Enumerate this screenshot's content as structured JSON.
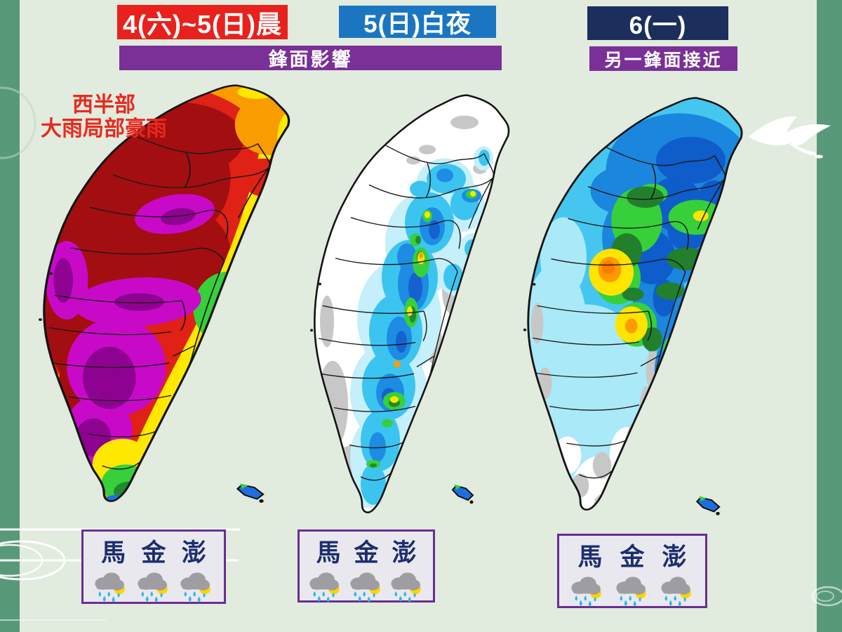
{
  "headers": [
    {
      "label": "4(六)~5(日)晨",
      "bg": "#e9211c",
      "text_color": "#ffffff"
    },
    {
      "label": "5(日)白夜",
      "bg": "#1a76c1",
      "text_color": "#ffffff"
    },
    {
      "label": "6(一)",
      "bg": "#1c2e5c",
      "text_color": "#ffffff"
    }
  ],
  "banners": [
    {
      "label": "鋒面影響",
      "bg": "#7a3097",
      "text_color": "#ffffff"
    },
    {
      "label": "另一鋒面接近",
      "bg": "#7a3097",
      "text_color": "#ffffff"
    }
  ],
  "annotation": {
    "lines": [
      "西半部",
      "大雨局部豪雨"
    ],
    "color": "#e8291f"
  },
  "maps": [
    {
      "period": "4(六)~5(日)晨",
      "rain_palette": [
        "#f89c00",
        "#ffe800",
        "#df2116",
        "#a30e10",
        "#c80ac8",
        "#8e0291",
        "#37d03a",
        "#208a2e",
        "#1d6fe0"
      ]
    },
    {
      "period": "5(日)白夜",
      "rain_palette": [
        "#ffffff",
        "#c7c7c7",
        "#c4effb",
        "#3cc4f1",
        "#1d8ce2",
        "#1561cf",
        "#37d03a",
        "#208a2e",
        "#ffe400",
        "#ff9a00"
      ]
    },
    {
      "period": "6(一)",
      "rain_palette": [
        "#45c6ef",
        "#aae9f8",
        "#ffffff",
        "#c7c7c7",
        "#1b86dd",
        "#0f5ccb",
        "#37d03a",
        "#227f2c",
        "#ffe400",
        "#ff9a00"
      ]
    }
  ],
  "offshore_boxes": [
    {
      "islands": [
        "馬",
        "金",
        "澎"
      ],
      "icons": [
        "rain-cloud",
        "rain-cloud",
        "rain-cloud"
      ]
    },
    {
      "islands": [
        "馬",
        "金",
        "澎"
      ],
      "icons": [
        "rain-cloud",
        "rain-cloud",
        "rain-cloud"
      ]
    },
    {
      "islands": [
        "馬",
        "金",
        "澎"
      ],
      "icons": [
        "rain-cloud",
        "rain-cloud",
        "rain-cloud"
      ]
    }
  ]
}
